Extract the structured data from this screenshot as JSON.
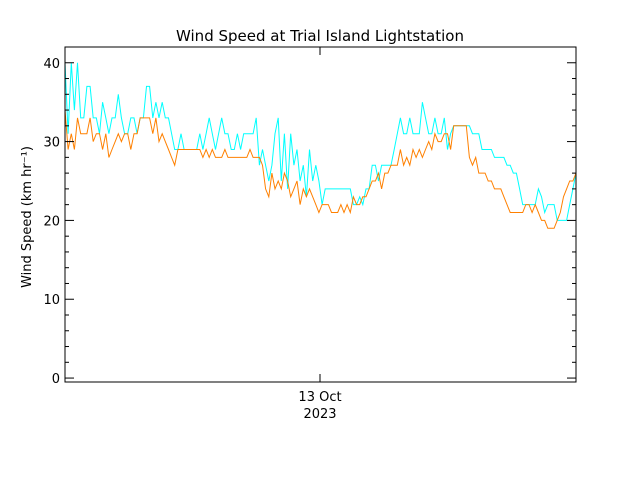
{
  "chart_data": {
    "type": "line",
    "title": "Wind Speed at Trial Island Lightstation",
    "xlabel_date": "13 Oct",
    "xlabel_year": "2023",
    "ylabel": "Wind Speed (km hr⁻¹)",
    "ylim": [
      -0.5,
      42
    ],
    "yticks": [
      0,
      10,
      20,
      30,
      40
    ],
    "ytick_labels": [
      "0",
      "10",
      "20",
      "30",
      "40"
    ],
    "xtick_label": "13 Oct 2023",
    "grid": false,
    "series": [
      {
        "color": "#00ffff",
        "values": [
          40,
          31,
          40,
          34,
          40,
          33,
          33,
          37,
          37,
          33,
          33,
          31,
          35,
          33,
          31,
          33,
          33,
          36,
          33,
          31,
          31,
          33,
          33,
          31,
          33,
          33,
          37,
          37,
          33,
          35,
          33,
          35,
          33,
          33,
          31,
          29,
          29,
          31,
          29,
          29,
          29,
          29,
          29,
          31,
          29,
          31,
          33,
          31,
          29,
          31,
          33,
          31,
          31,
          29,
          29,
          31,
          29,
          31,
          31,
          31,
          31,
          33,
          27,
          29,
          27,
          25,
          27,
          31,
          33,
          25,
          31,
          24,
          31,
          27,
          29,
          25,
          27,
          23,
          29,
          25,
          27,
          25,
          22,
          24,
          24,
          24,
          24,
          24,
          24,
          24,
          24,
          24,
          22,
          22,
          23,
          22,
          24,
          24,
          27,
          27,
          25,
          27,
          27,
          27,
          27,
          29,
          31,
          33,
          31,
          31,
          33,
          31,
          31,
          31,
          35,
          33,
          31,
          31,
          33,
          31,
          31,
          33,
          29,
          31,
          32,
          32,
          32,
          32,
          32,
          32,
          31,
          31,
          31,
          29,
          29,
          29,
          29,
          28,
          28,
          28,
          28,
          27,
          27,
          26,
          26,
          24,
          22,
          22,
          22,
          22,
          22,
          24,
          23,
          21,
          22,
          22,
          22,
          20,
          20,
          20,
          20,
          22,
          24,
          26
        ]
      },
      {
        "color": "#ff8000",
        "values": [
          34,
          29,
          31,
          29,
          33,
          31,
          31,
          31,
          33,
          30,
          31,
          31,
          29,
          31,
          28,
          29,
          30,
          31,
          30,
          31,
          31,
          29,
          31,
          31,
          33,
          33,
          33,
          33,
          31,
          33,
          30,
          31,
          30,
          29,
          28,
          27,
          29,
          29,
          29,
          29,
          29,
          29,
          29,
          29,
          28,
          29,
          28,
          29,
          28,
          28,
          28,
          29,
          28,
          28,
          28,
          28,
          28,
          28,
          28,
          29,
          28,
          28,
          28,
          27,
          24,
          23,
          26,
          24,
          25,
          24,
          26,
          25,
          23,
          24,
          25,
          22,
          24,
          23,
          24,
          23,
          22,
          21,
          22,
          22,
          22,
          21,
          21,
          21,
          22,
          21,
          22,
          21,
          23,
          22,
          22,
          23,
          23,
          24,
          25,
          25,
          26,
          24,
          26,
          26,
          27,
          27,
          27,
          29,
          27,
          28,
          27,
          29,
          28,
          29,
          28,
          29,
          30,
          29,
          31,
          30,
          30,
          31,
          31,
          29,
          32,
          32,
          32,
          32,
          32,
          28,
          27,
          28,
          26,
          26,
          26,
          25,
          25,
          24,
          24,
          24,
          23,
          22,
          21,
          21,
          21,
          21,
          21,
          22,
          22,
          21,
          22,
          21,
          20,
          20,
          19,
          19,
          19,
          20,
          21,
          23,
          24,
          25,
          25,
          26
        ]
      }
    ]
  }
}
